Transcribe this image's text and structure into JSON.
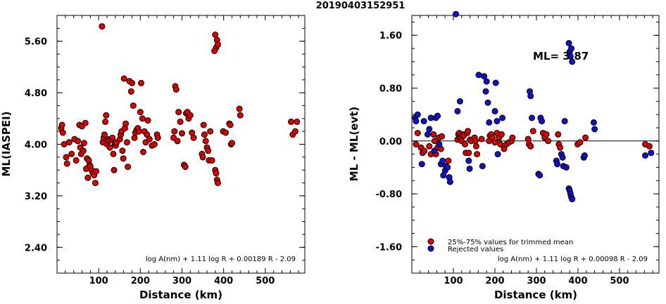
{
  "title": "20190403152951",
  "chart_data": [
    {
      "type": "scatter",
      "xlabel": "Distance (km)",
      "ylabel": "ML(IASPEI)",
      "xlim": [
        0,
        595
      ],
      "ylim": [
        2.0,
        6.0
      ],
      "x_ticks": [
        "100",
        "200",
        "300",
        "400",
        "500"
      ],
      "y_ticks": [
        "2.40",
        "3.20",
        "4.00",
        "4.80",
        "5.60"
      ],
      "formula": "log A(nm) + 1.11 log R + 0.00189 R - 2.09",
      "series": [
        {
          "color": "#dd0000",
          "points": [
            [
              10,
              4.25
            ],
            [
              12,
              4.3
            ],
            [
              14,
              4.18
            ],
            [
              17,
              4.0
            ],
            [
              22,
              3.8
            ],
            [
              24,
              3.7
            ],
            [
              29,
              4.03
            ],
            [
              35,
              3.85
            ],
            [
              42,
              4.08
            ],
            [
              46,
              3.75
            ],
            [
              50,
              4.05
            ],
            [
              54,
              4.3
            ],
            [
              56,
              3.95
            ],
            [
              58,
              3.85
            ],
            [
              60,
              4.28
            ],
            [
              63,
              3.9
            ],
            [
              65,
              4.02
            ],
            [
              68,
              4.33
            ],
            [
              70,
              3.62
            ],
            [
              72,
              3.78
            ],
            [
              74,
              3.48
            ],
            [
              76,
              3.75
            ],
            [
              78,
              3.68
            ],
            [
              80,
              3.66
            ],
            [
              83,
              3.6
            ],
            [
              86,
              3.55
            ],
            [
              89,
              3.52
            ],
            [
              92,
              3.4
            ],
            [
              94,
              3.58
            ],
            [
              108,
              5.83
            ],
            [
              110,
              4.03
            ],
            [
              112,
              4.1
            ],
            [
              114,
              4.15
            ],
            [
              116,
              4.35
            ],
            [
              118,
              4.45
            ],
            [
              120,
              4.0
            ],
            [
              122,
              4.08
            ],
            [
              124,
              4.05
            ],
            [
              127,
              3.95
            ],
            [
              130,
              4.07
            ],
            [
              133,
              4.1
            ],
            [
              135,
              3.85
            ],
            [
              137,
              3.6
            ],
            [
              139,
              4.0
            ],
            [
              141,
              3.98
            ],
            [
              143,
              4.03
            ],
            [
              151,
              4.08
            ],
            [
              153,
              4.15
            ],
            [
              155,
              4.2
            ],
            [
              157,
              3.9
            ],
            [
              159,
              3.78
            ],
            [
              161,
              5.02
            ],
            [
              163,
              4.25
            ],
            [
              165,
              4.32
            ],
            [
              168,
              4.03
            ],
            [
              170,
              3.65
            ],
            [
              174,
              4.98
            ],
            [
              178,
              4.82
            ],
            [
              180,
              4.95
            ],
            [
              183,
              4.6
            ],
            [
              186,
              4.1
            ],
            [
              188,
              4.18
            ],
            [
              191,
              4.22
            ],
            [
              194,
              4.25
            ],
            [
              197,
              4.2
            ],
            [
              200,
              4.5
            ],
            [
              202,
              4.95
            ],
            [
              205,
              4.4
            ],
            [
              207,
              3.88
            ],
            [
              210,
              4.2
            ],
            [
              213,
              4.03
            ],
            [
              216,
              4.15
            ],
            [
              218,
              4.37
            ],
            [
              222,
              4.08
            ],
            [
              228,
              3.98
            ],
            [
              234,
              4.0
            ],
            [
              240,
              4.15
            ],
            [
              242,
              4.1
            ],
            [
              280,
              4.1
            ],
            [
              282,
              4.2
            ],
            [
              284,
              4.9
            ],
            [
              286,
              4.85
            ],
            [
              289,
              4.05
            ],
            [
              292,
              4.5
            ],
            [
              296,
              4.35
            ],
            [
              300,
              4.17
            ],
            [
              305,
              3.68
            ],
            [
              308,
              3.65
            ],
            [
              310,
              4.48
            ],
            [
              313,
              4.5
            ],
            [
              316,
              4.4
            ],
            [
              320,
              4.45
            ],
            [
              324,
              4.18
            ],
            [
              328,
              4.1
            ],
            [
              348,
              3.85
            ],
            [
              350,
              3.8
            ],
            [
              352,
              4.3
            ],
            [
              354,
              4.15
            ],
            [
              357,
              4.05
            ],
            [
              360,
              3.95
            ],
            [
              363,
              3.9
            ],
            [
              365,
              3.75
            ],
            [
              368,
              4.2
            ],
            [
              372,
              3.75
            ],
            [
              380,
              5.7
            ],
            [
              382,
              5.5
            ],
            [
              384,
              5.62
            ],
            [
              386,
              5.55
            ],
            [
              378,
              5.45
            ],
            [
              380,
              3.6
            ],
            [
              382,
              3.55
            ],
            [
              384,
              3.45
            ],
            [
              386,
              3.4
            ],
            [
              399,
              4.2
            ],
            [
              405,
              4.18
            ],
            [
              414,
              4.32
            ],
            [
              416,
              4.3
            ],
            [
              418,
              4.0
            ],
            [
              420,
              4.02
            ],
            [
              438,
              4.55
            ],
            [
              440,
              4.45
            ],
            [
              562,
              4.35
            ],
            [
              566,
              4.15
            ],
            [
              572,
              4.2
            ],
            [
              576,
              4.35
            ]
          ]
        }
      ]
    },
    {
      "type": "scatter",
      "xlabel": "Distance (km)",
      "ylabel": "ML - ML(evt)",
      "xlim": [
        0,
        595
      ],
      "ylim": [
        -2.0,
        1.9
      ],
      "x_ticks": [
        "100",
        "200",
        "300",
        "400",
        "500"
      ],
      "y_ticks": [
        "-1.60",
        "-0.80",
        "0.00",
        "0.80",
        "1.60"
      ],
      "reference_line": 0.0,
      "ml_label": "ML= 3.87",
      "formula": "log A(nm) + 1.11 log R + 0.00098 R - 2.09",
      "legend": [
        {
          "label": "25%-75% values for trimmed mean",
          "color": "#dd0000"
        },
        {
          "label": "Rejected values",
          "color": "#1111cc"
        }
      ],
      "series": [
        {
          "color": "#dd0000",
          "points": [
            [
              10,
              -0.05
            ],
            [
              14,
              0.12
            ],
            [
              22,
              -0.1
            ],
            [
              26,
              -0.18
            ],
            [
              30,
              -0.15
            ],
            [
              42,
              -0.08
            ],
            [
              46,
              -0.2
            ],
            [
              52,
              0.1
            ],
            [
              55,
              0.0
            ],
            [
              58,
              -0.2
            ],
            [
              62,
              -0.1
            ],
            [
              65,
              0.05
            ],
            [
              70,
              -0.12
            ],
            [
              72,
              0.07
            ],
            [
              88,
              -0.3
            ],
            [
              110,
              0.02
            ],
            [
              112,
              0.1
            ],
            [
              114,
              0.12
            ],
            [
              116,
              0.05
            ],
            [
              118,
              0.05
            ],
            [
              120,
              0.0
            ],
            [
              122,
              0.1
            ],
            [
              125,
              0.08
            ],
            [
              128,
              -0.05
            ],
            [
              130,
              -0.18
            ],
            [
              133,
              0.12
            ],
            [
              135,
              0.15
            ],
            [
              137,
              -0.18
            ],
            [
              140,
              0.02
            ],
            [
              143,
              0.0
            ],
            [
              151,
              0.05
            ],
            [
              153,
              0.0
            ],
            [
              155,
              -0.08
            ],
            [
              157,
              -0.2
            ],
            [
              168,
              0.03
            ],
            [
              186,
              0.0
            ],
            [
              188,
              0.08
            ],
            [
              191,
              0.1
            ],
            [
              194,
              0.05
            ],
            [
              200,
              -0.02
            ],
            [
              205,
              0.12
            ],
            [
              210,
              0.05
            ],
            [
              213,
              -0.05
            ],
            [
              216,
              0.1
            ],
            [
              222,
              -0.12
            ],
            [
              228,
              -0.05
            ],
            [
              234,
              -0.02
            ],
            [
              240,
              0.0
            ],
            [
              242,
              0.05
            ],
            [
              280,
              0.03
            ],
            [
              282,
              -0.05
            ],
            [
              286,
              -0.08
            ],
            [
              292,
              0.15
            ],
            [
              316,
              0.12
            ],
            [
              320,
              0.05
            ],
            [
              324,
              0.1
            ],
            [
              328,
              0.0
            ],
            [
              352,
              0.1
            ],
            [
              354,
              -0.05
            ],
            [
              357,
              -0.1
            ],
            [
              399,
              -0.05
            ],
            [
              405,
              -0.02
            ],
            [
              418,
              0.05
            ],
            [
              562,
              -0.05
            ],
            [
              572,
              -0.08
            ]
          ]
        },
        {
          "color": "#1111cc",
          "points": [
            [
              8,
              0.35
            ],
            [
              10,
              0.3
            ],
            [
              14,
              0.4
            ],
            [
              24,
              -0.35
            ],
            [
              29,
              0.3
            ],
            [
              38,
              0.1
            ],
            [
              42,
              0.18
            ],
            [
              46,
              0.35
            ],
            [
              54,
              -0.15
            ],
            [
              58,
              0.35
            ],
            [
              62,
              0.38
            ],
            [
              66,
              -0.05
            ],
            [
              70,
              -0.35
            ],
            [
              74,
              -0.3
            ],
            [
              76,
              -0.52
            ],
            [
              80,
              -0.45
            ],
            [
              82,
              -0.38
            ],
            [
              86,
              -0.4
            ],
            [
              90,
              -0.55
            ],
            [
              92,
              -0.62
            ],
            [
              106,
              1.92
            ],
            [
              110,
              0.45
            ],
            [
              116,
              0.6
            ],
            [
              137,
              -0.3
            ],
            [
              139,
              -0.42
            ],
            [
              161,
              1.0
            ],
            [
              170,
              -0.38
            ],
            [
              174,
              0.98
            ],
            [
              178,
              0.75
            ],
            [
              180,
              0.9
            ],
            [
              183,
              0.58
            ],
            [
              186,
              0.28
            ],
            [
              200,
              0.45
            ],
            [
              202,
              0.88
            ],
            [
              205,
              0.3
            ],
            [
              207,
              -0.2
            ],
            [
              218,
              0.35
            ],
            [
              284,
              0.75
            ],
            [
              286,
              0.68
            ],
            [
              289,
              0.35
            ],
            [
              305,
              -0.5
            ],
            [
              308,
              -0.52
            ],
            [
              310,
              0.35
            ],
            [
              313,
              0.3
            ],
            [
              348,
              -0.3
            ],
            [
              350,
              -0.35
            ],
            [
              360,
              -0.2
            ],
            [
              363,
              -0.25
            ],
            [
              365,
              -0.38
            ],
            [
              368,
              0.3
            ],
            [
              372,
              -0.4
            ],
            [
              378,
              1.48
            ],
            [
              380,
              1.35
            ],
            [
              382,
              1.28
            ],
            [
              384,
              1.4
            ],
            [
              386,
              1.2
            ],
            [
              378,
              -0.72
            ],
            [
              380,
              -0.75
            ],
            [
              382,
              -0.8
            ],
            [
              384,
              -0.85
            ],
            [
              386,
              -0.88
            ],
            [
              414,
              -0.25
            ],
            [
              416,
              -0.22
            ],
            [
              438,
              0.28
            ],
            [
              440,
              0.18
            ],
            [
              562,
              -0.22
            ],
            [
              576,
              -0.18
            ]
          ]
        }
      ]
    }
  ]
}
